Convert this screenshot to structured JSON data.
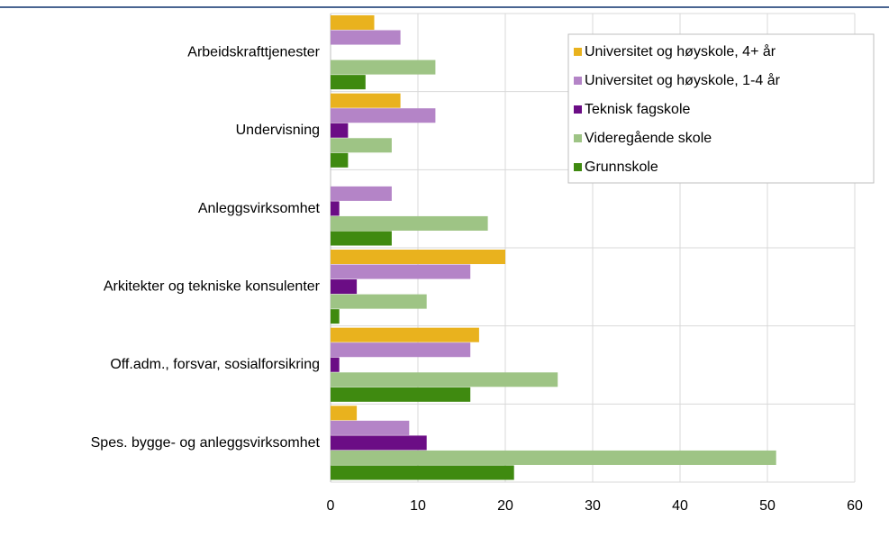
{
  "chart_data": {
    "type": "hbar",
    "categories": [
      "Arbeidskrafttjenester",
      "Undervisning",
      "Anleggsvirksomhet",
      "Arkitekter og tekniske konsulenter",
      "Off.adm., forsvar, sosialforsikring",
      "Spes. bygge- og anleggsvirksomhet"
    ],
    "series": [
      {
        "name": "Universitet og høyskole, 4+ år",
        "color": "#e9b21e",
        "values": [
          5,
          8,
          0,
          20,
          17,
          3
        ]
      },
      {
        "name": "Universitet og høyskole, 1-4 år",
        "color": "#b484c7",
        "values": [
          8,
          12,
          7,
          16,
          16,
          9
        ]
      },
      {
        "name": "Teknisk fagskole",
        "color": "#6b0d85",
        "values": [
          0,
          2,
          1,
          3,
          1,
          11
        ]
      },
      {
        "name": "Videregående skole",
        "color": "#9ec485",
        "values": [
          12,
          7,
          18,
          11,
          26,
          51
        ]
      },
      {
        "name": "Grunnskole",
        "color": "#3f8a10",
        "values": [
          4,
          2,
          7,
          1,
          16,
          21
        ]
      }
    ],
    "xlim": [
      0,
      60
    ],
    "xticks": [
      0,
      10,
      20,
      30,
      40,
      50,
      60
    ],
    "grid": true,
    "legend": "top-right"
  }
}
